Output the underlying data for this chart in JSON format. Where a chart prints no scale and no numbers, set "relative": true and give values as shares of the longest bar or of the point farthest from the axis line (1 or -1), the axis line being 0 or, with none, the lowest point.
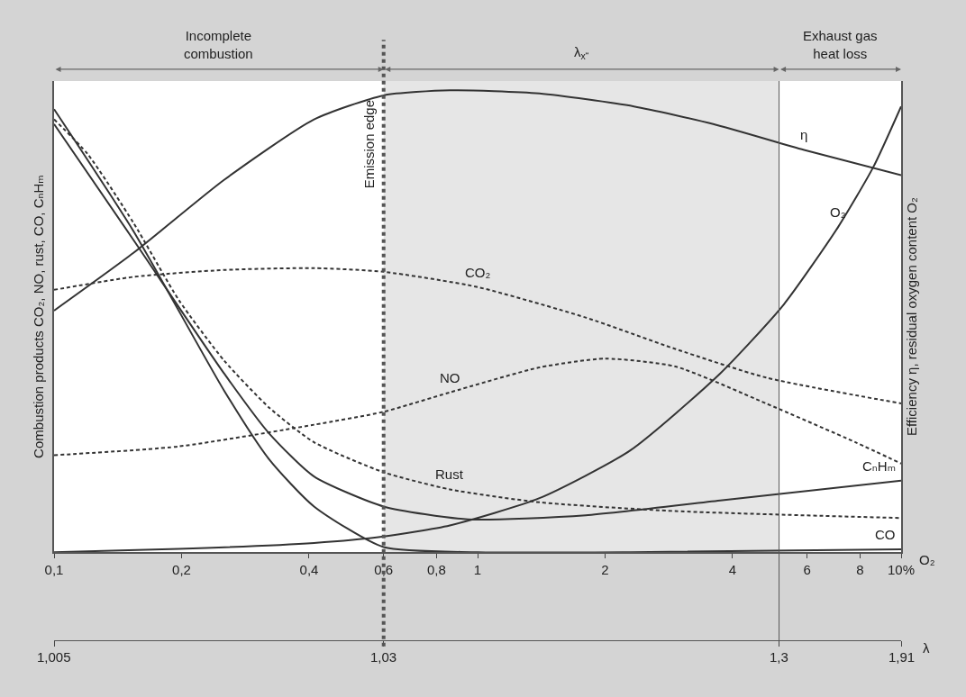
{
  "chart_data": {
    "type": "line",
    "relative": true,
    "xlabel": "O₂",
    "ylabel": "Combustion products CO₂, NO, rust, CO, CₙHₘ",
    "y2label": "Efficiency η, residual oxygen content O₂",
    "log": "x",
    "grid": false,
    "marker": "none",
    "xlim": [
      0.1,
      10
    ],
    "xticks": [
      {
        "value": 0.1,
        "label": "0,1"
      },
      {
        "value": 0.2,
        "label": "0,2"
      },
      {
        "value": 0.4,
        "label": "0,4"
      },
      {
        "value": 0.6,
        "label": "0,6"
      },
      {
        "value": 0.8,
        "label": "0,8"
      },
      1,
      2,
      4,
      6,
      8,
      {
        "value": 10,
        "label": "10%"
      }
    ],
    "x2label": "λ",
    "series": [
      {
        "color": "#333333",
        "line_style": "solid",
        "x": [
          0.1,
          0.154,
          0.252,
          0.411,
          0.6,
          0.86,
          1.4,
          2.34,
          3.6,
          5.9,
          10
        ],
        "values": [
          0.523,
          0.648,
          0.806,
          0.937,
          0.989,
          1.0,
          0.993,
          0.965,
          0.927,
          0.871,
          0.816
        ]
      },
      {
        "color": "#333333",
        "line_style": "solid",
        "x": [
          0.1,
          0.197,
          0.411,
          0.6,
          0.86,
          1.4,
          2.29,
          3.74,
          5.28,
          7.1,
          8.6,
          10
        ],
        "values": [
          0.0,
          0.007,
          0.02,
          0.034,
          0.058,
          0.117,
          0.22,
          0.387,
          0.536,
          0.704,
          0.834,
          0.965
        ]
      },
      {
        "color": "#333333",
        "line_style": "dashed",
        "x": [
          0.1,
          0.154,
          0.252,
          0.411,
          0.6,
          1,
          1.8,
          2.93,
          4.8,
          10
        ],
        "values": [
          0.568,
          0.596,
          0.611,
          0.615,
          0.607,
          0.574,
          0.508,
          0.44,
          0.378,
          0.322
        ]
      },
      {
        "color": "#333333",
        "line_style": "dashed",
        "x": [
          0.1,
          0.197,
          0.411,
          0.6,
          0.86,
          1.4,
          2,
          2.93,
          4.8,
          7.8,
          10
        ],
        "values": [
          0.21,
          0.229,
          0.276,
          0.304,
          0.346,
          0.4,
          0.419,
          0.402,
          0.322,
          0.238,
          0.192
        ]
      },
      {
        "color": "#333333",
        "line_style": "dashed",
        "x": [
          0.1,
          0.12,
          0.154,
          0.197,
          0.252,
          0.322,
          0.411,
          0.6,
          0.86,
          1.4,
          2.93,
          10
        ],
        "values": [
          0.937,
          0.862,
          0.713,
          0.546,
          0.415,
          0.313,
          0.238,
          0.173,
          0.136,
          0.108,
          0.089,
          0.074
        ]
      },
      {
        "color": "#333333",
        "line_style": "solid",
        "x": [
          0.1,
          0.154,
          0.252,
          0.322,
          0.411,
          0.6,
          0.95,
          1.8,
          3.74,
          10
        ],
        "values": [
          0.927,
          0.676,
          0.387,
          0.257,
          0.164,
          0.099,
          0.071,
          0.08,
          0.112,
          0.155
        ]
      },
      {
        "color": "#333333",
        "line_style": "solid",
        "x": [
          0.1,
          0.154,
          0.252,
          0.322,
          0.411,
          0.6,
          1,
          2.3,
          10
        ],
        "values": [
          0.959,
          0.695,
          0.35,
          0.201,
          0.099,
          0.011,
          0.0,
          0.0,
          0.006
        ]
      }
    ],
    "annotations": [
      {
        "text": "η",
        "x": 5.9,
        "y": 0.871
      },
      {
        "text": "O₂",
        "x": 7.1,
        "y": 0.704
      },
      {
        "text": "CO₂",
        "x": 1,
        "y": 0.574
      },
      {
        "text": "NO",
        "x": 0.86,
        "y": 0.346
      },
      {
        "text": "Rust",
        "x": 0.86,
        "y": 0.136
      },
      {
        "text": "CₙHₘ",
        "x": 10,
        "y": 0.155
      },
      {
        "text": "CO",
        "x": 10,
        "y": 0.006
      },
      "Incomplete\ncombustion",
      "Exhaust gas\nheat loss",
      "1,005",
      "1,03",
      "1,3",
      "1,91"
    ],
    "ref_lines": [
      {
        "axis": "x",
        "value": 0.6,
        "label": "Emission edge",
        "color": "#555555",
        "line_style": "dotted"
      },
      {
        "axis": "x",
        "value": 5.15,
        "color": "#555555",
        "line_style": "solid"
      }
    ],
    "bands": [
      {
        "axis": "x",
        "from": 0.6,
        "to": 5.15,
        "label": "λ$_{x“}$",
        "color": "#e6e6e6"
      }
    ]
  }
}
